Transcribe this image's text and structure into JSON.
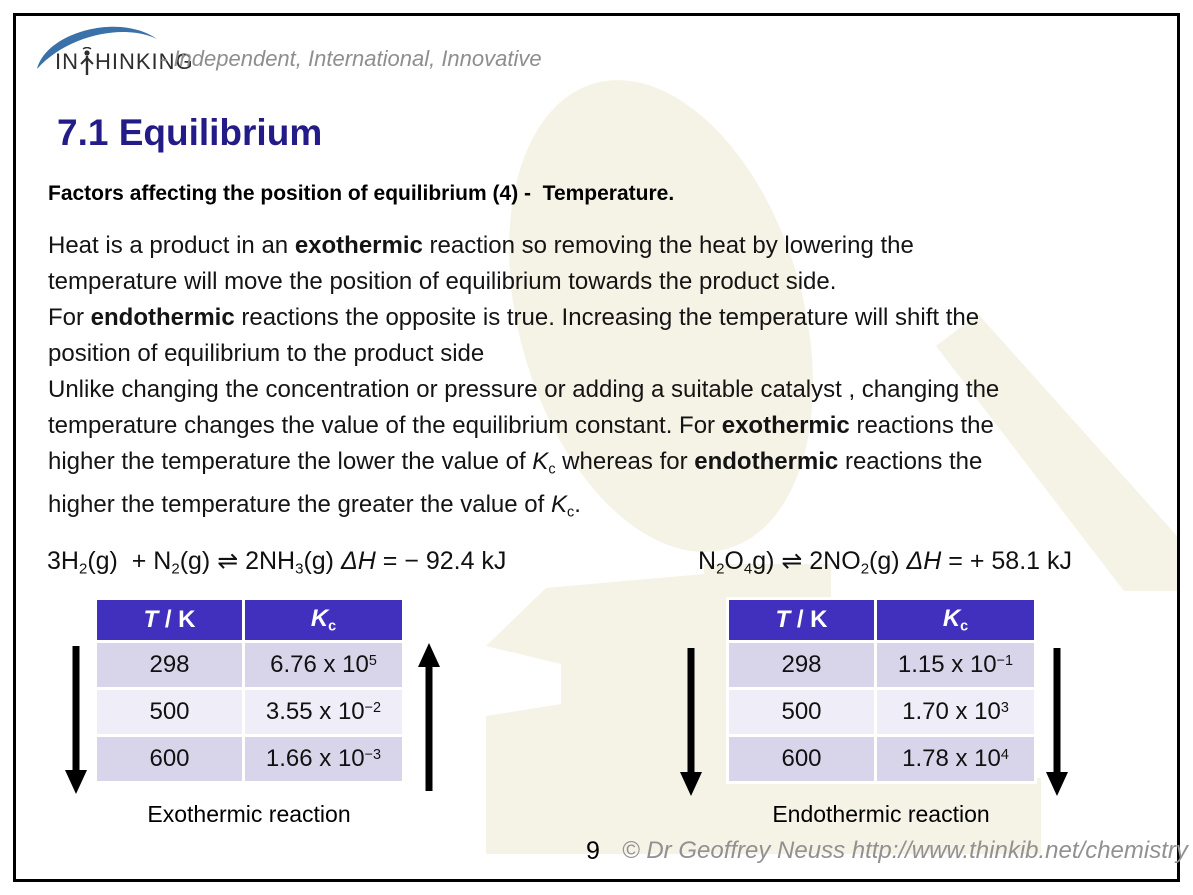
{
  "logo": {
    "brand_left": "IN",
    "brand_right": "HINKING",
    "tagline": "- Independent, International, Innovative",
    "swoosh_color": "#3a71a8"
  },
  "page": {
    "title": "7.1 Equilibrium",
    "title_color": "#231b87",
    "page_number": "9",
    "copyright": "© Dr Geoffrey Neuss http://www.thinkib.net/chemistry"
  },
  "heading": "Factors affecting the position of equilibrium (4) -  Temperature.",
  "body": {
    "lines": [
      [
        {
          "t": "Heat is a product in an "
        },
        {
          "t": "exothermic",
          "b": 1
        },
        {
          "t": " reaction so removing the heat by lowering the"
        }
      ],
      [
        {
          "t": "temperature will move the position of equilibrium towards the product side."
        }
      ],
      [
        {
          "t": "For "
        },
        {
          "t": "endothermic",
          "b": 1
        },
        {
          "t": " reactions the opposite is true. Increasing the temperature will shift the"
        }
      ],
      [
        {
          "t": "position of equilibrium to the product side"
        }
      ],
      [
        {
          "t": "Unlike changing the concentration or pressure or adding a suitable catalyst , changing the"
        }
      ],
      [
        {
          "t": "temperature changes the value of the equilibrium constant. For "
        },
        {
          "t": "exothermic",
          "b": 1
        },
        {
          "t": " reactions the"
        }
      ],
      [
        {
          "t": "higher the temperature the lower the value of "
        },
        {
          "t": "K",
          "i": 1
        },
        {
          "t": "c",
          "sub": 1
        },
        {
          "t": " whereas for "
        },
        {
          "t": "endothermic",
          "b": 1
        },
        {
          "t": " reactions the"
        }
      ],
      [
        {
          "t": "higher the temperature the greater the value of "
        },
        {
          "t": "K",
          "i": 1
        },
        {
          "t": "c",
          "sub": 1
        },
        {
          "t": "."
        }
      ]
    ]
  },
  "left_section": {
    "equation": [
      {
        "t": "3H"
      },
      {
        "t": "2",
        "sub": 1
      },
      {
        "t": "(g)  + N"
      },
      {
        "t": "2",
        "sub": 1
      },
      {
        "t": "(g) ⇌ 2NH"
      },
      {
        "t": "3",
        "sub": 1
      },
      {
        "t": "(g) "
      },
      {
        "t": "ΔH",
        "i": 1
      },
      {
        "t": " = − 92.4 kJ"
      }
    ],
    "caption": "Exothermic reaction",
    "left_arrow_direction": "down",
    "right_arrow_direction": "up",
    "table": {
      "header_t": [
        {
          "t": "T",
          "i": 1
        },
        {
          "t": " / K"
        }
      ],
      "header_k": [
        {
          "t": "K",
          "i": 1
        },
        {
          "t": "c",
          "sub": 1
        }
      ],
      "rows": [
        {
          "t": "298",
          "k": [
            {
              "t": "6.76 x 10"
            },
            {
              "t": "5",
              "sup": 1
            }
          ]
        },
        {
          "t": "500",
          "k": [
            {
              "t": "3.55 x 10"
            },
            {
              "t": "−2",
              "sup": 1
            }
          ]
        },
        {
          "t": "600",
          "k": [
            {
              "t": "1.66 x 10"
            },
            {
              "t": "−3",
              "sup": 1
            }
          ]
        }
      ]
    }
  },
  "right_section": {
    "equation": [
      {
        "t": "N"
      },
      {
        "t": "2",
        "sub": 1
      },
      {
        "t": "O"
      },
      {
        "t": "4",
        "sub": 1
      },
      {
        "t": "g) ⇌ 2NO"
      },
      {
        "t": "2",
        "sub": 1
      },
      {
        "t": "(g) "
      },
      {
        "t": "ΔH",
        "i": 1
      },
      {
        "t": " = + 58.1 kJ"
      }
    ],
    "caption": "Endothermic reaction",
    "left_arrow_direction": "down",
    "right_arrow_direction": "down",
    "table": {
      "header_t": [
        {
          "t": "T",
          "i": 1
        },
        {
          "t": " / K"
        }
      ],
      "header_k": [
        {
          "t": "K",
          "i": 1
        },
        {
          "t": "c",
          "sub": 1
        }
      ],
      "rows": [
        {
          "t": "298",
          "k": [
            {
              "t": "1.15 x 10"
            },
            {
              "t": "−1",
              "sup": 1
            }
          ]
        },
        {
          "t": "500",
          "k": [
            {
              "t": "1.70 x 10"
            },
            {
              "t": "3",
              "sup": 1
            }
          ]
        },
        {
          "t": "600",
          "k": [
            {
              "t": "1.78 x 10"
            },
            {
              "t": "4",
              "sup": 1
            }
          ]
        }
      ]
    }
  },
  "colors": {
    "table_header_bg": "#4130be",
    "table_row_dark": "#d8d5eb",
    "table_row_light": "#efedf7",
    "watermark": "#f5f2e6",
    "arrow": "#000000"
  }
}
